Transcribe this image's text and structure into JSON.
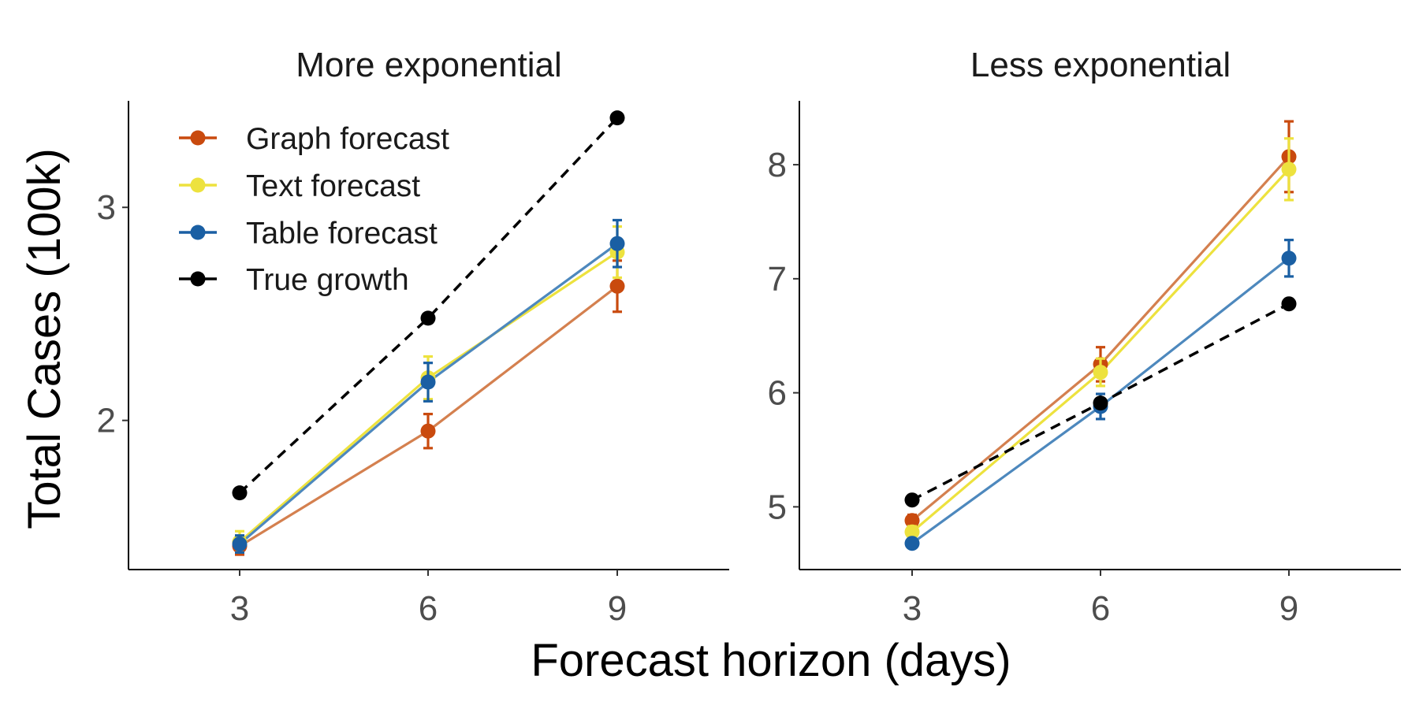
{
  "figure": {
    "xlabel": "Forecast horizon (days)",
    "ylabel": "Total Cases (100k)"
  },
  "legend": [
    {
      "name": "Graph forecast",
      "color": "#C94A0E"
    },
    {
      "name": "Text forecast",
      "color": "#EDE23E"
    },
    {
      "name": "Table forecast",
      "color": "#1A5FA3"
    },
    {
      "name": "True growth",
      "color": "#000000"
    }
  ],
  "chart_data": [
    {
      "type": "line",
      "title": "More exponential",
      "xlabel": "Forecast horizon (days)",
      "ylabel": "Total Cases (100k)",
      "x": [
        3,
        6,
        9
      ],
      "xticks": [
        "3",
        "6",
        "9"
      ],
      "yticks": [
        "2",
        "3"
      ],
      "ylim": [
        1.3,
        3.5
      ],
      "series": [
        {
          "name": "Graph forecast",
          "color": "#C94A0E",
          "line_color": "#D4804F",
          "values": [
            1.41,
            1.95,
            2.63
          ],
          "err": [
            0.04,
            0.08,
            0.12
          ],
          "dashed": false
        },
        {
          "name": "Text forecast",
          "color": "#EDE23E",
          "line_color": "#EDE23E",
          "values": [
            1.43,
            2.2,
            2.79
          ],
          "err": [
            0.05,
            0.1,
            0.12
          ],
          "dashed": false
        },
        {
          "name": "Table forecast",
          "color": "#1A5FA3",
          "line_color": "#4D88BD",
          "values": [
            1.42,
            2.18,
            2.83
          ],
          "err": [
            0.04,
            0.09,
            0.11
          ],
          "dashed": false
        },
        {
          "name": "True growth",
          "color": "#000000",
          "line_color": "#000000",
          "values": [
            1.66,
            2.48,
            3.42
          ],
          "err": [
            0,
            0,
            0
          ],
          "dashed": true
        }
      ]
    },
    {
      "type": "line",
      "title": "Less exponential",
      "xlabel": "Forecast horizon (days)",
      "ylabel": "",
      "x": [
        3,
        6,
        9
      ],
      "xticks": [
        "3",
        "6",
        "9"
      ],
      "yticks": [
        "5",
        "6",
        "7",
        "8"
      ],
      "ylim": [
        4.45,
        8.56
      ],
      "series": [
        {
          "name": "Graph forecast",
          "color": "#C94A0E",
          "line_color": "#D4804F",
          "values": [
            4.88,
            6.25,
            8.07
          ],
          "err": [
            0.05,
            0.15,
            0.31
          ],
          "dashed": false
        },
        {
          "name": "Text forecast",
          "color": "#EDE23E",
          "line_color": "#EDE23E",
          "values": [
            4.78,
            6.18,
            7.96
          ],
          "err": [
            0.05,
            0.12,
            0.27
          ],
          "dashed": false
        },
        {
          "name": "Table forecast",
          "color": "#1A5FA3",
          "line_color": "#4D88BD",
          "values": [
            4.68,
            5.88,
            7.18
          ],
          "err": [
            0.03,
            0.11,
            0.16
          ],
          "dashed": false
        },
        {
          "name": "True growth",
          "color": "#000000",
          "line_color": "#000000",
          "values": [
            5.06,
            5.91,
            6.78
          ],
          "err": [
            0,
            0,
            0
          ],
          "dashed": true
        }
      ]
    }
  ]
}
